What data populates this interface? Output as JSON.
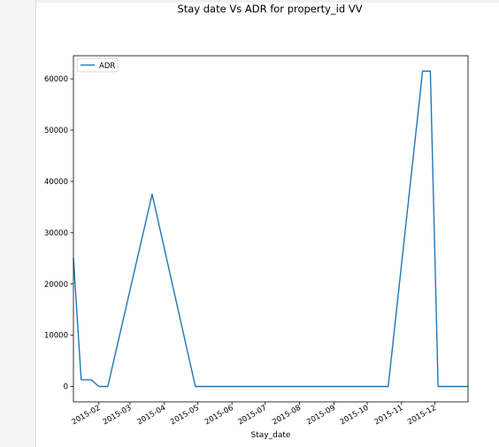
{
  "chart_data": {
    "type": "line",
    "title": "Stay date Vs ADR for property_id VV",
    "xlabel": "Stay_date",
    "ylabel": "",
    "x_tick_labels": [
      "2015-02",
      "2015-03",
      "2015-04",
      "2015-05",
      "2015-06",
      "2015-07",
      "2015-08",
      "2015-09",
      "2015-10",
      "2015-11",
      "2015-12"
    ],
    "x_range": [
      "2015-01-09",
      "2015-12-31"
    ],
    "y_ticks": [
      0,
      10000,
      20000,
      30000,
      40000,
      50000,
      60000
    ],
    "ylim": [
      -3000,
      64500
    ],
    "grid": false,
    "legend_placement": "top-left",
    "series": [
      {
        "name": "ADR",
        "color": "#1f77b4",
        "x": [
          "2015-01-09",
          "2015-01-16",
          "2015-01-25",
          "2015-02-01",
          "2015-02-09",
          "2015-03-21",
          "2015-04-29",
          "2015-10-20",
          "2015-11-20",
          "2015-11-27",
          "2015-12-04",
          "2015-12-31"
        ],
        "values": [
          25000,
          1300,
          1300,
          0,
          0,
          37500,
          0,
          0,
          61500,
          61500,
          0,
          0
        ]
      }
    ]
  }
}
